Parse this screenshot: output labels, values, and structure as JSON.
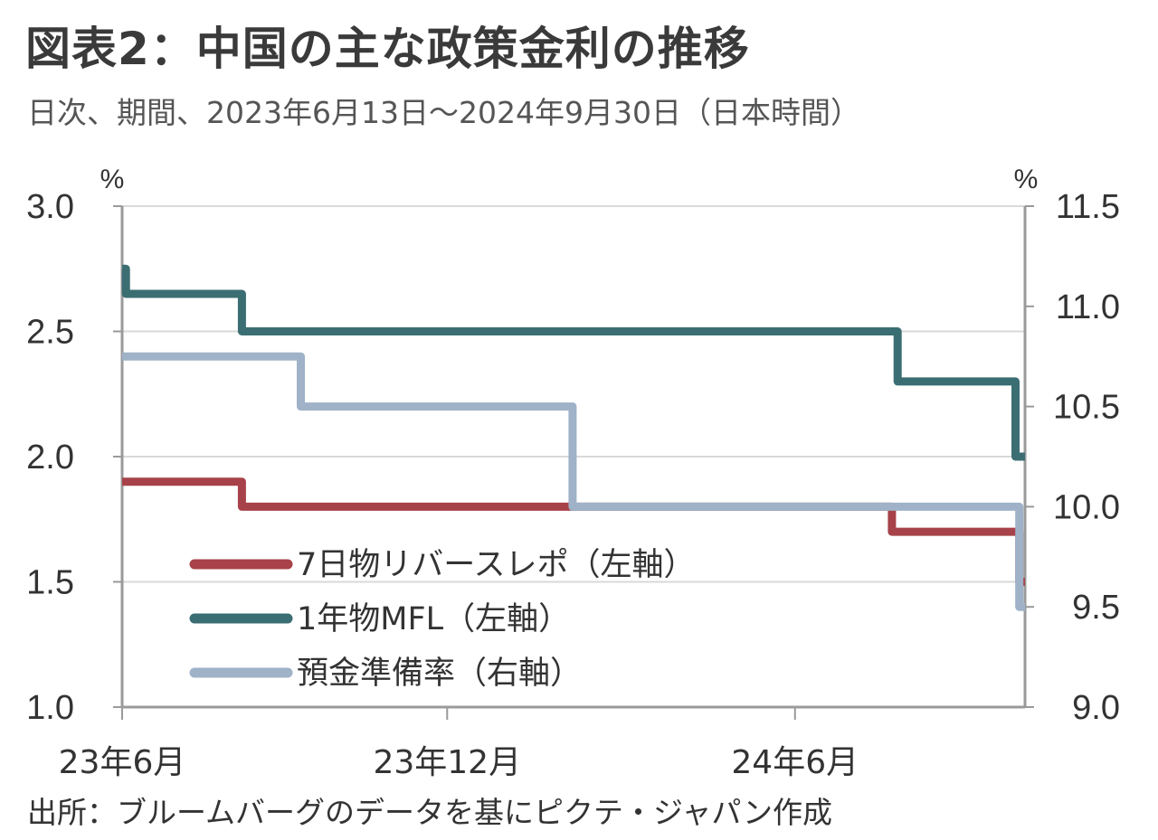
{
  "title": "図表2：中国の主な政策金利の推移",
  "subtitle": "日次、期間、2023年6月13日～2024年9月30日（日本時間）",
  "source": "出所：ブルームバーグのデータを基にピクテ・ジャパン作成",
  "chart_data": {
    "type": "line",
    "step": true,
    "x_range": [
      "2023-06-13",
      "2024-09-30"
    ],
    "x_ticks": [
      {
        "date": "2023-06-13",
        "label": "23年6月"
      },
      {
        "date": "2023-12-01",
        "label": "23年12月"
      },
      {
        "date": "2024-06-01",
        "label": "24年6月"
      }
    ],
    "y_left": {
      "unit": "%",
      "range": [
        1.0,
        3.0
      ],
      "ticks": [
        "1.0",
        "1.5",
        "2.0",
        "2.5",
        "3.0"
      ]
    },
    "y_right": {
      "unit": "%",
      "range": [
        9.0,
        11.5
      ],
      "ticks": [
        "9.0",
        "9.5",
        "10.0",
        "10.5",
        "11.0",
        "11.5"
      ]
    },
    "grid": "horizontal",
    "legend_position": "center-left",
    "series": [
      {
        "name": "7日物リバースレポ（左軸）",
        "axis": "left",
        "color": "#a8424a",
        "points": [
          [
            "2023-06-13",
            1.9
          ],
          [
            "2023-08-15",
            1.9
          ],
          [
            "2023-08-15",
            1.8
          ],
          [
            "2024-07-22",
            1.8
          ],
          [
            "2024-07-22",
            1.7
          ],
          [
            "2024-09-27",
            1.7
          ],
          [
            "2024-09-27",
            1.5
          ],
          [
            "2024-09-30",
            1.5
          ]
        ]
      },
      {
        "name": "1年物MFL（左軸）",
        "axis": "left",
        "color": "#3b6e72",
        "points": [
          [
            "2023-06-13",
            2.75
          ],
          [
            "2023-06-15",
            2.75
          ],
          [
            "2023-06-15",
            2.65
          ],
          [
            "2023-08-15",
            2.65
          ],
          [
            "2023-08-15",
            2.5
          ],
          [
            "2024-07-25",
            2.5
          ],
          [
            "2024-07-25",
            2.3
          ],
          [
            "2024-09-25",
            2.3
          ],
          [
            "2024-09-25",
            2.0
          ],
          [
            "2024-09-30",
            2.0
          ]
        ]
      },
      {
        "name": "預金準備率（右軸）",
        "axis": "right",
        "color": "#9fb2c8",
        "points": [
          [
            "2023-06-13",
            10.75
          ],
          [
            "2023-09-15",
            10.75
          ],
          [
            "2023-09-15",
            10.5
          ],
          [
            "2024-02-05",
            10.5
          ],
          [
            "2024-02-05",
            10.0
          ],
          [
            "2024-09-27",
            10.0
          ],
          [
            "2024-09-27",
            9.5
          ],
          [
            "2024-09-30",
            9.5
          ]
        ]
      }
    ]
  }
}
